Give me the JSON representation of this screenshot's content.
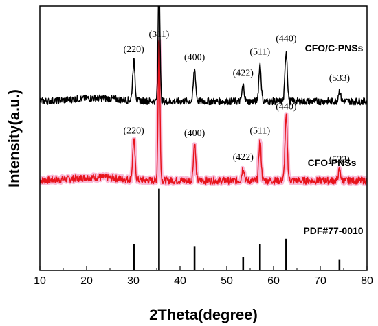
{
  "chart_data": {
    "type": "line",
    "xlabel": "2Theta(degree)",
    "ylabel": "Intensity(a.u.)",
    "xlim": [
      10,
      80
    ],
    "x_ticks": [
      "10",
      "20",
      "30",
      "40",
      "50",
      "60",
      "70",
      "80"
    ],
    "y_ticks_labeled": false,
    "colors": {
      "CFO/C-PNSs": "#000000",
      "CFO-PNSs": "#e8141c",
      "CFO-PNSs-band": "#f5a3c9",
      "PDF#77-0010": "#000000"
    },
    "series": [
      {
        "name": "CFO/C-PNSs",
        "baseline": 0.64,
        "peaks": [
          {
            "label": "(220)",
            "x": 30.1,
            "height": 0.15
          },
          {
            "label": "(311)",
            "x": 35.5,
            "height": 0.47
          },
          {
            "label": "(400)",
            "x": 43.1,
            "height": 0.12
          },
          {
            "label": "(422)",
            "x": 53.5,
            "height": 0.06
          },
          {
            "label": "(511)",
            "x": 57.1,
            "height": 0.14
          },
          {
            "label": "(440)",
            "x": 62.7,
            "height": 0.19
          },
          {
            "label": "(533)",
            "x": 74.1,
            "height": 0.04
          }
        ]
      },
      {
        "name": "CFO-PNSs",
        "baseline": 0.34,
        "peaks": [
          {
            "label": "(220)",
            "x": 30.1,
            "height": 0.15
          },
          {
            "label": "(311)",
            "x": 35.5,
            "height": 0.54
          },
          {
            "label": "(400)",
            "x": 43.1,
            "height": 0.14
          },
          {
            "label": "(422)",
            "x": 53.5,
            "height": 0.05
          },
          {
            "label": "(511)",
            "x": 57.1,
            "height": 0.15
          },
          {
            "label": "(440)",
            "x": 62.7,
            "height": 0.24
          },
          {
            "label": "(533)",
            "x": 74.1,
            "height": 0.04
          }
        ]
      },
      {
        "name": "PDF#77-0010",
        "type": "stick",
        "lines": [
          {
            "x": 30.1,
            "height": 0.1
          },
          {
            "x": 35.5,
            "height": 0.31
          },
          {
            "x": 43.1,
            "height": 0.09
          },
          {
            "x": 53.5,
            "height": 0.05
          },
          {
            "x": 57.1,
            "height": 0.1
          },
          {
            "x": 62.7,
            "height": 0.12
          },
          {
            "x": 74.1,
            "height": 0.04
          }
        ]
      }
    ]
  }
}
